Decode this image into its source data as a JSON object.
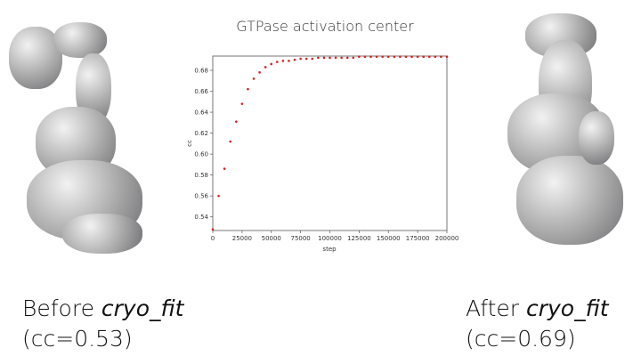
{
  "left_caption": {
    "line1": "Before ",
    "tool": "cryo_fit",
    "line2": "(cc=0.53)"
  },
  "right_caption": {
    "line1": "After ",
    "tool": "cryo_fit",
    "line2": "(cc=0.69)"
  },
  "chart_data": {
    "type": "scatter",
    "title": "GTPase activation center",
    "xlabel": "step",
    "ylabel": "cc",
    "xlim": [
      0,
      200000
    ],
    "ylim": [
      0.527,
      0.6936
    ],
    "xticks": [
      0,
      25000,
      50000,
      75000,
      100000,
      125000,
      150000,
      175000,
      200000
    ],
    "yticks": [
      0.54,
      0.56,
      0.58,
      0.6,
      0.62,
      0.64,
      0.66,
      0.68
    ],
    "ytick_labels": [
      "0.54",
      "0.56",
      "0.58",
      "0.60",
      "0.62",
      "0.64",
      "0.66",
      "0.68"
    ],
    "grid": false,
    "marker_color": "#d62020",
    "x": [
      0,
      5000,
      10000,
      15000,
      20000,
      25000,
      30000,
      35000,
      40000,
      45000,
      50000,
      55000,
      60000,
      65000,
      70000,
      75000,
      80000,
      85000,
      90000,
      95000,
      100000,
      105000,
      110000,
      115000,
      120000,
      125000,
      130000,
      135000,
      140000,
      145000,
      150000,
      155000,
      160000,
      165000,
      170000,
      175000,
      180000,
      185000,
      190000,
      195000,
      200000
    ],
    "y": [
      0.528,
      0.56,
      0.586,
      0.612,
      0.631,
      0.648,
      0.662,
      0.672,
      0.678,
      0.683,
      0.686,
      0.688,
      0.689,
      0.689,
      0.69,
      0.691,
      0.691,
      0.691,
      0.692,
      0.692,
      0.692,
      0.692,
      0.692,
      0.692,
      0.692,
      0.693,
      0.693,
      0.693,
      0.693,
      0.693,
      0.693,
      0.693,
      0.693,
      0.693,
      0.693,
      0.693,
      0.693,
      0.693,
      0.693,
      0.693,
      0.693
    ]
  }
}
